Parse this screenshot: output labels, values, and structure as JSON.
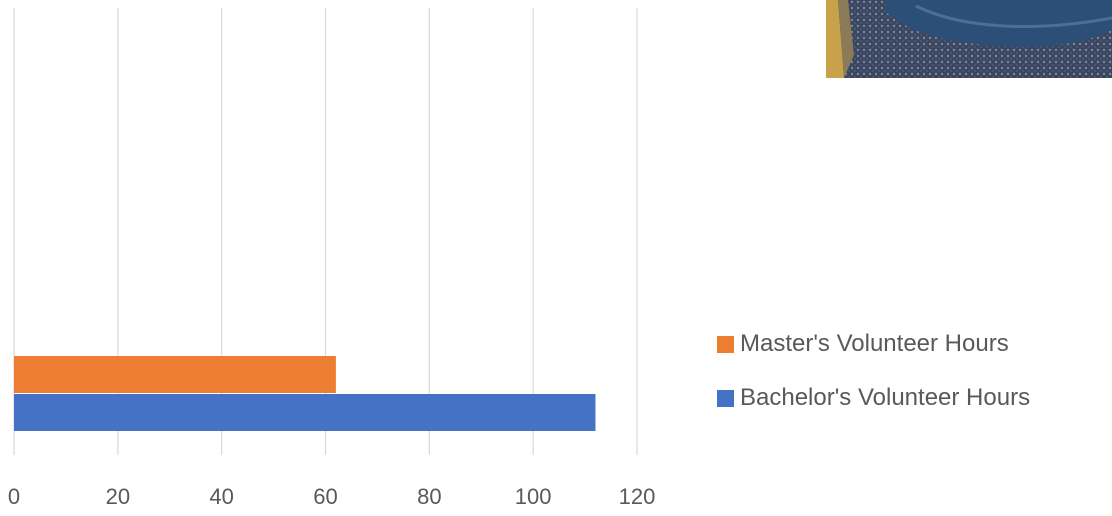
{
  "chart_data": {
    "type": "bar",
    "orientation": "horizontal",
    "categories": [
      ""
    ],
    "series": [
      {
        "name": "Bachelor's Volunteer Hours",
        "values": [
          112
        ],
        "color": "#4472C4"
      },
      {
        "name": "Master's Volunteer Hours",
        "values": [
          62
        ],
        "color": "#ED7D31"
      }
    ],
    "title": "",
    "xlabel": "",
    "ylabel": "",
    "xlim": [
      0,
      120
    ],
    "xticks": [
      "0",
      "20",
      "40",
      "60",
      "80",
      "100",
      "120"
    ],
    "grid": true,
    "legend_position": "right"
  },
  "legend": {
    "items": [
      {
        "label": "Master's Volunteer Hours",
        "color": "#ED7D31"
      },
      {
        "label": "Bachelor's Volunteer Hours",
        "color": "#4472C4"
      }
    ]
  },
  "photo": {
    "description_icon": "photo-image"
  }
}
